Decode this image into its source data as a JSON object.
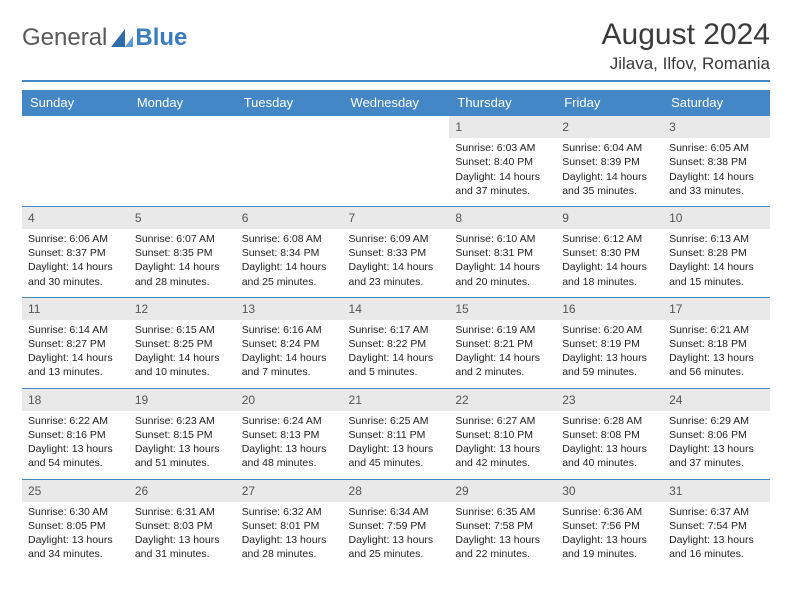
{
  "brand": {
    "part1": "General",
    "part2": "Blue"
  },
  "title": "August 2024",
  "location": "Jilava, Ilfov, Romania",
  "colors": {
    "accent": "#4487c7",
    "header_text": "#ffffff",
    "daynum_bg": "#e9e9e9",
    "text": "#222222",
    "logo_gray": "#595959"
  },
  "calendar": {
    "columns": [
      "Sunday",
      "Monday",
      "Tuesday",
      "Wednesday",
      "Thursday",
      "Friday",
      "Saturday"
    ],
    "column_count": 7,
    "first_weekday_index": 4,
    "days": [
      {
        "n": 1,
        "sr": "6:03 AM",
        "ss": "8:40 PM",
        "dl": "14 hours and 37 minutes."
      },
      {
        "n": 2,
        "sr": "6:04 AM",
        "ss": "8:39 PM",
        "dl": "14 hours and 35 minutes."
      },
      {
        "n": 3,
        "sr": "6:05 AM",
        "ss": "8:38 PM",
        "dl": "14 hours and 33 minutes."
      },
      {
        "n": 4,
        "sr": "6:06 AM",
        "ss": "8:37 PM",
        "dl": "14 hours and 30 minutes."
      },
      {
        "n": 5,
        "sr": "6:07 AM",
        "ss": "8:35 PM",
        "dl": "14 hours and 28 minutes."
      },
      {
        "n": 6,
        "sr": "6:08 AM",
        "ss": "8:34 PM",
        "dl": "14 hours and 25 minutes."
      },
      {
        "n": 7,
        "sr": "6:09 AM",
        "ss": "8:33 PM",
        "dl": "14 hours and 23 minutes."
      },
      {
        "n": 8,
        "sr": "6:10 AM",
        "ss": "8:31 PM",
        "dl": "14 hours and 20 minutes."
      },
      {
        "n": 9,
        "sr": "6:12 AM",
        "ss": "8:30 PM",
        "dl": "14 hours and 18 minutes."
      },
      {
        "n": 10,
        "sr": "6:13 AM",
        "ss": "8:28 PM",
        "dl": "14 hours and 15 minutes."
      },
      {
        "n": 11,
        "sr": "6:14 AM",
        "ss": "8:27 PM",
        "dl": "14 hours and 13 minutes."
      },
      {
        "n": 12,
        "sr": "6:15 AM",
        "ss": "8:25 PM",
        "dl": "14 hours and 10 minutes."
      },
      {
        "n": 13,
        "sr": "6:16 AM",
        "ss": "8:24 PM",
        "dl": "14 hours and 7 minutes."
      },
      {
        "n": 14,
        "sr": "6:17 AM",
        "ss": "8:22 PM",
        "dl": "14 hours and 5 minutes."
      },
      {
        "n": 15,
        "sr": "6:19 AM",
        "ss": "8:21 PM",
        "dl": "14 hours and 2 minutes."
      },
      {
        "n": 16,
        "sr": "6:20 AM",
        "ss": "8:19 PM",
        "dl": "13 hours and 59 minutes."
      },
      {
        "n": 17,
        "sr": "6:21 AM",
        "ss": "8:18 PM",
        "dl": "13 hours and 56 minutes."
      },
      {
        "n": 18,
        "sr": "6:22 AM",
        "ss": "8:16 PM",
        "dl": "13 hours and 54 minutes."
      },
      {
        "n": 19,
        "sr": "6:23 AM",
        "ss": "8:15 PM",
        "dl": "13 hours and 51 minutes."
      },
      {
        "n": 20,
        "sr": "6:24 AM",
        "ss": "8:13 PM",
        "dl": "13 hours and 48 minutes."
      },
      {
        "n": 21,
        "sr": "6:25 AM",
        "ss": "8:11 PM",
        "dl": "13 hours and 45 minutes."
      },
      {
        "n": 22,
        "sr": "6:27 AM",
        "ss": "8:10 PM",
        "dl": "13 hours and 42 minutes."
      },
      {
        "n": 23,
        "sr": "6:28 AM",
        "ss": "8:08 PM",
        "dl": "13 hours and 40 minutes."
      },
      {
        "n": 24,
        "sr": "6:29 AM",
        "ss": "8:06 PM",
        "dl": "13 hours and 37 minutes."
      },
      {
        "n": 25,
        "sr": "6:30 AM",
        "ss": "8:05 PM",
        "dl": "13 hours and 34 minutes."
      },
      {
        "n": 26,
        "sr": "6:31 AM",
        "ss": "8:03 PM",
        "dl": "13 hours and 31 minutes."
      },
      {
        "n": 27,
        "sr": "6:32 AM",
        "ss": "8:01 PM",
        "dl": "13 hours and 28 minutes."
      },
      {
        "n": 28,
        "sr": "6:34 AM",
        "ss": "7:59 PM",
        "dl": "13 hours and 25 minutes."
      },
      {
        "n": 29,
        "sr": "6:35 AM",
        "ss": "7:58 PM",
        "dl": "13 hours and 22 minutes."
      },
      {
        "n": 30,
        "sr": "6:36 AM",
        "ss": "7:56 PM",
        "dl": "13 hours and 19 minutes."
      },
      {
        "n": 31,
        "sr": "6:37 AM",
        "ss": "7:54 PM",
        "dl": "13 hours and 16 minutes."
      }
    ],
    "labels": {
      "sunrise": "Sunrise:",
      "sunset": "Sunset:",
      "daylight": "Daylight:"
    }
  }
}
